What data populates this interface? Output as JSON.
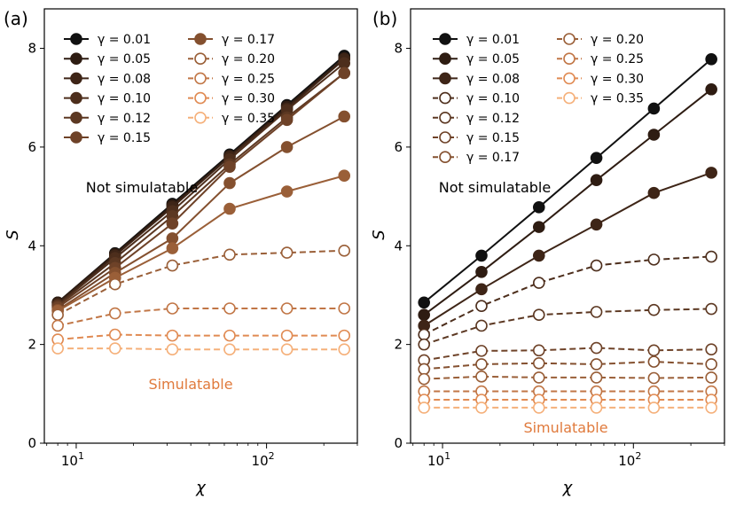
{
  "chart_data": [
    {
      "panel": "(a)",
      "type": "line",
      "xscale": "log",
      "xlabel": "χ",
      "ylabel": "S",
      "ylim": [
        0,
        8.8
      ],
      "yticks": [
        0,
        2,
        4,
        6,
        8
      ],
      "xticks": [
        {
          "value": 10,
          "base": "10",
          "exp": "1"
        },
        {
          "value": 100,
          "base": "10",
          "exp": "2"
        }
      ],
      "x": [
        8,
        16,
        32,
        64,
        128,
        256
      ],
      "legend_location": "top-left",
      "annotations": {
        "upper": "Not simulatable",
        "lower": "Simulatable",
        "lower_color": "#e07a3c"
      },
      "series": [
        {
          "name": "γ = 0.01",
          "color": "#111111",
          "style": "solid",
          "filled": true,
          "values": [
            2.85,
            3.85,
            4.85,
            5.85,
            6.85,
            7.85
          ]
        },
        {
          "name": "γ = 0.05",
          "color": "#2e1c12",
          "style": "solid",
          "filled": true,
          "values": [
            2.85,
            3.83,
            4.82,
            5.82,
            6.82,
            7.8
          ]
        },
        {
          "name": "γ = 0.08",
          "color": "#3e2517",
          "style": "solid",
          "filled": true,
          "values": [
            2.82,
            3.8,
            4.78,
            5.8,
            6.78,
            7.78
          ]
        },
        {
          "name": "γ = 0.10",
          "color": "#4d2e1c",
          "style": "solid",
          "filled": true,
          "values": [
            2.8,
            3.75,
            4.7,
            5.75,
            6.75,
            7.7
          ]
        },
        {
          "name": "γ = 0.12",
          "color": "#5c3822",
          "style": "solid",
          "filled": true,
          "values": [
            2.78,
            3.65,
            4.6,
            5.65,
            6.6,
            7.5
          ]
        },
        {
          "name": "γ = 0.15",
          "color": "#6e4228",
          "style": "solid",
          "filled": true,
          "values": [
            2.75,
            3.55,
            4.45,
            5.6,
            6.55,
            7.5
          ]
        },
        {
          "name": "γ = 0.17",
          "color": "#84502f",
          "style": "solid",
          "filled": true,
          "values": [
            2.7,
            3.45,
            4.15,
            5.27,
            6.0,
            6.62
          ]
        },
        {
          "name": "γ = 0.20",
          "color": "#9a5f38",
          "style": "solid",
          "filled": true,
          "values": [
            2.68,
            3.35,
            3.95,
            4.75,
            5.1,
            5.42
          ]
        },
        {
          "name": "γ = 0.20",
          "color": "#9a5f38",
          "style": "dashed",
          "filled": false,
          "values": [
            2.6,
            3.22,
            3.6,
            3.82,
            3.86,
            3.9
          ]
        },
        {
          "name": "γ = 0.25",
          "color": "#c17646",
          "style": "dashed",
          "filled": false,
          "values": [
            2.38,
            2.63,
            2.73,
            2.73,
            2.73,
            2.73
          ]
        },
        {
          "name": "γ = 0.30",
          "color": "#e08a52",
          "style": "dashed",
          "filled": false,
          "values": [
            2.1,
            2.2,
            2.18,
            2.18,
            2.18,
            2.18
          ]
        },
        {
          "name": "γ = 0.35",
          "color": "#f5b07a",
          "style": "dashed",
          "filled": false,
          "values": [
            1.92,
            1.92,
            1.9,
            1.9,
            1.9,
            1.9
          ]
        }
      ],
      "legend": [
        {
          "label": "γ = 0.01",
          "color": "#111111",
          "style": "solid",
          "filled": true
        },
        {
          "label": "γ = 0.05",
          "color": "#2e1c12",
          "style": "solid",
          "filled": true
        },
        {
          "label": "γ = 0.08",
          "color": "#3e2517",
          "style": "solid",
          "filled": true
        },
        {
          "label": "γ = 0.10",
          "color": "#4d2e1c",
          "style": "solid",
          "filled": true
        },
        {
          "label": "γ = 0.12",
          "color": "#5c3822",
          "style": "solid",
          "filled": true
        },
        {
          "label": "γ = 0.15",
          "color": "#6e4228",
          "style": "solid",
          "filled": true
        },
        {
          "label": "γ = 0.17",
          "color": "#84502f",
          "style": "solid",
          "filled": true
        },
        {
          "label": "γ = 0.20",
          "color": "#9a5f38",
          "style": "dashed",
          "filled": false
        },
        {
          "label": "γ = 0.25",
          "color": "#c17646",
          "style": "dashed",
          "filled": false
        },
        {
          "label": "γ = 0.30",
          "color": "#e08a52",
          "style": "dashed",
          "filled": false
        },
        {
          "label": "γ = 0.35",
          "color": "#f5b07a",
          "style": "dashed",
          "filled": false
        }
      ]
    },
    {
      "panel": "(b)",
      "type": "line",
      "xscale": "log",
      "xlabel": "χ",
      "ylabel": "S",
      "ylim": [
        0,
        8.8
      ],
      "yticks": [
        0,
        2,
        4,
        6,
        8
      ],
      "xticks": [
        {
          "value": 10,
          "base": "10",
          "exp": "1"
        },
        {
          "value": 100,
          "base": "10",
          "exp": "2"
        }
      ],
      "x": [
        8,
        16,
        32,
        64,
        128,
        256
      ],
      "legend_location": "top-left",
      "annotations": {
        "upper": "Not simulatable",
        "lower": "Simulatable",
        "lower_color": "#e07a3c"
      },
      "series": [
        {
          "name": "γ = 0.01",
          "color": "#111111",
          "style": "solid",
          "filled": true,
          "values": [
            2.85,
            3.8,
            4.78,
            5.78,
            6.78,
            7.78
          ]
        },
        {
          "name": "γ = 0.05",
          "color": "#2e1c12",
          "style": "solid",
          "filled": true,
          "values": [
            2.6,
            3.47,
            4.38,
            5.33,
            6.25,
            7.17
          ]
        },
        {
          "name": "γ = 0.08",
          "color": "#3e2517",
          "style": "solid",
          "filled": true,
          "values": [
            2.38,
            3.12,
            3.8,
            4.43,
            5.07,
            5.48
          ]
        },
        {
          "name": "γ = 0.10",
          "color": "#4d2e1c",
          "style": "dashed",
          "filled": false,
          "values": [
            2.2,
            2.78,
            3.25,
            3.6,
            3.72,
            3.78
          ]
        },
        {
          "name": "γ = 0.12",
          "color": "#5c3822",
          "style": "dashed",
          "filled": false,
          "values": [
            2.0,
            2.38,
            2.6,
            2.66,
            2.7,
            2.72
          ]
        },
        {
          "name": "γ = 0.15",
          "color": "#6e4228",
          "style": "dashed",
          "filled": false,
          "values": [
            1.68,
            1.87,
            1.88,
            1.93,
            1.88,
            1.9
          ]
        },
        {
          "name": "γ = 0.17",
          "color": "#84502f",
          "style": "dashed",
          "filled": false,
          "values": [
            1.5,
            1.6,
            1.62,
            1.6,
            1.65,
            1.6
          ]
        },
        {
          "name": "γ = 0.20",
          "color": "#9a5f38",
          "style": "dashed",
          "filled": false,
          "values": [
            1.3,
            1.35,
            1.33,
            1.33,
            1.32,
            1.33
          ]
        },
        {
          "name": "γ = 0.25",
          "color": "#c17646",
          "style": "dashed",
          "filled": false,
          "values": [
            1.05,
            1.05,
            1.05,
            1.05,
            1.05,
            1.05
          ]
        },
        {
          "name": "γ = 0.30",
          "color": "#e08a52",
          "style": "dashed",
          "filled": false,
          "values": [
            0.88,
            0.88,
            0.88,
            0.88,
            0.88,
            0.88
          ]
        },
        {
          "name": "γ = 0.35",
          "color": "#f5b07a",
          "style": "dashed",
          "filled": false,
          "values": [
            0.72,
            0.72,
            0.72,
            0.72,
            0.72,
            0.72
          ]
        }
      ],
      "legend": [
        {
          "label": "γ = 0.01",
          "color": "#111111",
          "style": "solid",
          "filled": true
        },
        {
          "label": "γ = 0.05",
          "color": "#2e1c12",
          "style": "solid",
          "filled": true
        },
        {
          "label": "γ = 0.08",
          "color": "#3e2517",
          "style": "solid",
          "filled": true
        },
        {
          "label": "γ = 0.10",
          "color": "#4d2e1c",
          "style": "dashed",
          "filled": false
        },
        {
          "label": "γ = 0.12",
          "color": "#5c3822",
          "style": "dashed",
          "filled": false
        },
        {
          "label": "γ = 0.15",
          "color": "#6e4228",
          "style": "dashed",
          "filled": false
        },
        {
          "label": "γ = 0.17",
          "color": "#84502f",
          "style": "dashed",
          "filled": false
        },
        {
          "label": "γ = 0.20",
          "color": "#9a5f38",
          "style": "dashed",
          "filled": false
        },
        {
          "label": "γ = 0.25",
          "color": "#c17646",
          "style": "dashed",
          "filled": false
        },
        {
          "label": "γ = 0.30",
          "color": "#e08a52",
          "style": "dashed",
          "filled": false
        },
        {
          "label": "γ = 0.35",
          "color": "#f5b07a",
          "style": "dashed",
          "filled": false
        }
      ]
    }
  ]
}
